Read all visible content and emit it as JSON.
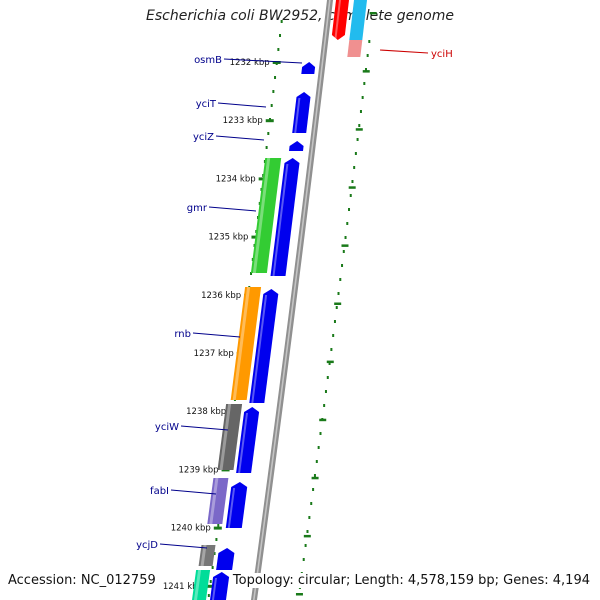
{
  "title": "Escherichia coli BW2952, complete genome",
  "footer": {
    "accession": "Accession: NC_012759",
    "topology": "Topology: circular; Length: 4,578,159 bp; Genes: 4,194"
  },
  "colors": {
    "backbone": "#909090",
    "forward_strand": "#0000ee",
    "tick": "#1a7a1a",
    "gene_label": "#00008b",
    "reverse_label": "#cc0000"
  },
  "kbp_labels": [
    "1232 kbp",
    "1233 kbp",
    "1234 kbp",
    "1235 kbp",
    "1236 kbp",
    "1237 kbp",
    "1238 kbp",
    "1239 kbp",
    "1240 kbp",
    "1241 kbp"
  ],
  "gene_labels": [
    "osmB",
    "yciT",
    "yciZ",
    "gmr",
    "rnb",
    "yciW",
    "fabI",
    "ycjD"
  ],
  "reverse_gene_labels": [
    "yciH"
  ],
  "features": {
    "gene_colors": {
      "gmr": "#33cc33",
      "rnb": "#ff9900",
      "yciW": "#666666",
      "fabI": "#7b68c8",
      "ycjD": "#777777",
      "next": "#00dd99",
      "yciH": "#ff0000",
      "yciH_companion": "#22bbee"
    }
  }
}
